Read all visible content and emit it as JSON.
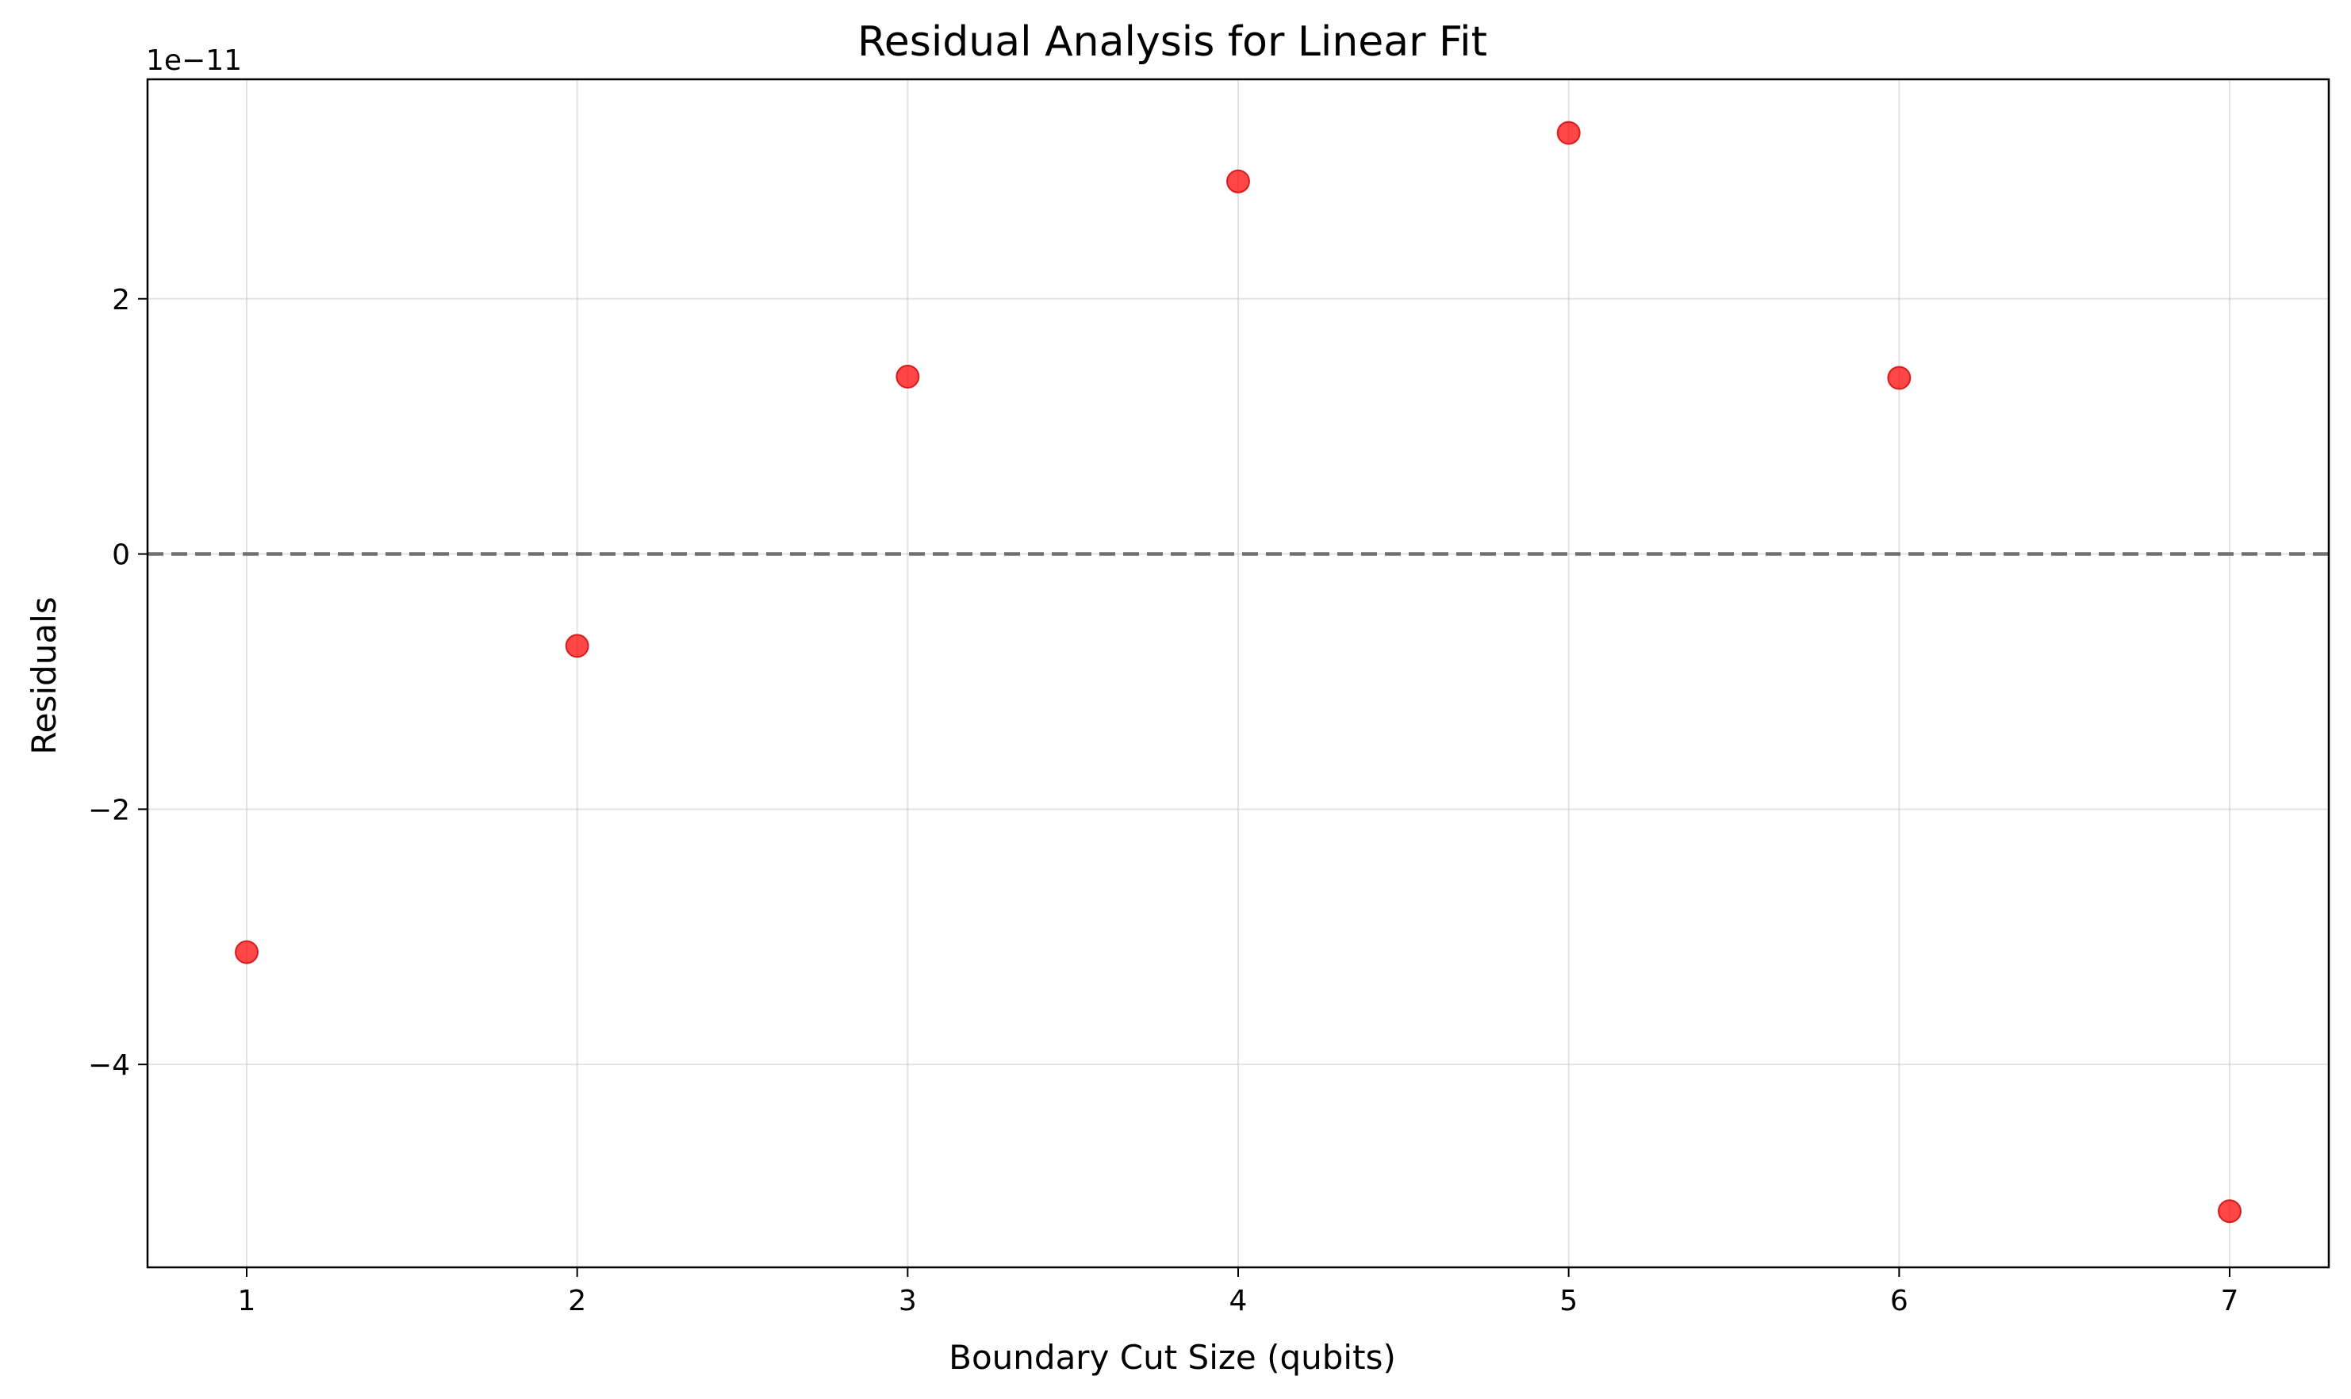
{
  "chart_data": {
    "type": "scatter",
    "title": "Residual Analysis for Linear Fit",
    "xlabel": "Boundary Cut Size (qubits)",
    "ylabel": "Residuals",
    "y_offset_label": "1e−11",
    "x": [
      1,
      2,
      3,
      4,
      5,
      6,
      7
    ],
    "y": [
      -3.12,
      -0.72,
      1.39,
      2.92,
      3.3,
      1.38,
      -5.15
    ],
    "xlim": [
      0.7,
      7.3
    ],
    "ylim": [
      -5.59,
      3.72
    ],
    "xticks": [
      1,
      2,
      3,
      4,
      5,
      6,
      7
    ],
    "xtick_labels": [
      "1",
      "2",
      "3",
      "4",
      "5",
      "6",
      "7"
    ],
    "yticks": [
      -4,
      -2,
      0,
      2
    ],
    "ytick_labels": [
      "−4",
      "−2",
      "0",
      "2"
    ],
    "reference_line": {
      "y": 0,
      "style": "dashed",
      "color": "#707070"
    },
    "marker_color": "#ff0000",
    "grid": true
  }
}
